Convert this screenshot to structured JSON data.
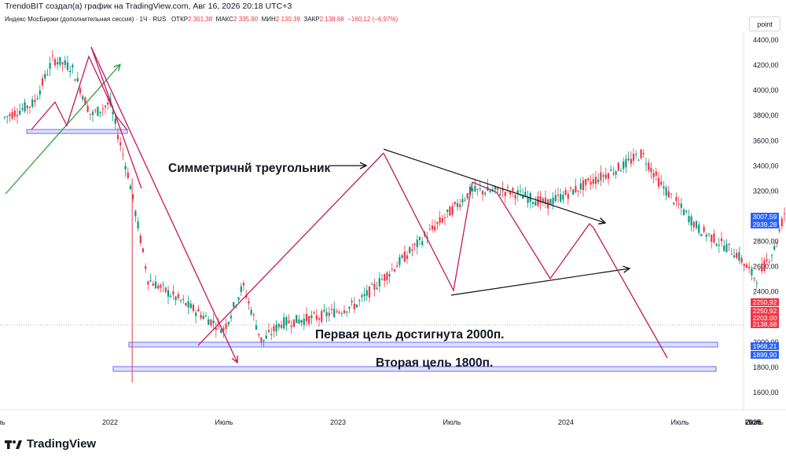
{
  "header": {
    "attribution": "TrendoBIT создал(а) график на TradingView.com, Авг 16, 2026 20:18 UTC+3"
  },
  "symbol_line": {
    "name": "Индекс МосБиржи (дополнительная сессия) · 1Ч · RUS",
    "open_label": "ОТКР",
    "open_value": "2 301,38",
    "high_label": "МАКС",
    "high_value": "2 335,90",
    "low_label": "МИН",
    "low_value": "2 130,39",
    "close_label": "ЗАКР",
    "close_value": "2 138,68",
    "change": "−160,12 (−6,97%)"
  },
  "toolbar": {
    "scale_button": "point"
  },
  "footer": {
    "brand": "TradingView"
  },
  "annotations": {
    "triangle": "Симметричнй треугольник",
    "target1": "Первая цель достигнута 2000п.",
    "target2": "Вторая цель 1800п."
  },
  "price_tags": [
    {
      "text": "3007,59",
      "color": "#2962ff"
    },
    {
      "text": "2939,28",
      "color": "#2962ff"
    },
    {
      "text": "2250,92",
      "color": "#f23645"
    },
    {
      "text": "2250,92",
      "color": "#f23645"
    },
    {
      "text": "2203,00",
      "color": "#f23645"
    },
    {
      "text": "2138,68",
      "color": "#f23645"
    },
    {
      "text": "1968,21",
      "color": "#2962ff"
    },
    {
      "text": "1899,90",
      "color": "#2962ff"
    }
  ],
  "colors": {
    "up": "#089981",
    "down": "#f23645",
    "pattern": "#c2185b",
    "trend_up": "#2e9e3a",
    "zone_fill": "#dde0fb",
    "zone_border": "#6a6ff0"
  },
  "chart_data": {
    "type": "candlestick",
    "title": "Индекс МосБиржи (дополнительная сессия) · 1Ч · RUS",
    "ylim": [
      1500,
      4550
    ],
    "y_ticks": [
      "4400,00",
      "4200,00",
      "4000,00",
      "3800,00",
      "3600,00",
      "3400,00",
      "3200,00",
      "3000,00",
      "2800,00",
      "2600,00",
      "2400,00",
      "2200,00",
      "2000,00",
      "1800,00",
      "1600,00"
    ],
    "y_tick_values": [
      4400,
      4200,
      4000,
      3800,
      3600,
      3400,
      3200,
      3000,
      2800,
      2600,
      2400,
      2200,
      2000,
      1800,
      1600
    ],
    "x_ticks": [
      "Июль",
      "2022",
      "Июль",
      "2023",
      "Июль",
      "2024",
      "Июль",
      "2025",
      "Июль",
      "2026",
      "Июль",
      "2027",
      "Июл"
    ],
    "x_tick_dates": [
      "2021-07",
      "2022-01",
      "2022-07",
      "2023-01",
      "2023-07",
      "2024-01",
      "2024-07",
      "2025-01",
      "2025-07",
      "2026-01",
      "2026-07",
      "2027-01",
      "2027-07"
    ],
    "price_path": [
      [
        "2021-03",
        3450
      ],
      [
        "2021-05",
        3620
      ],
      [
        "2021-07",
        3750
      ],
      [
        "2021-09",
        3900
      ],
      [
        "2021-10",
        4250
      ],
      [
        "2021-11",
        4180
      ],
      [
        "2021-12",
        3800
      ],
      [
        "2022-01",
        3900
      ],
      [
        "2022-02",
        3300
      ],
      [
        "2022-03",
        2500
      ],
      [
        "2022-04",
        2400
      ],
      [
        "2022-05",
        2300
      ],
      [
        "2022-06",
        2200
      ],
      [
        "2022-07",
        2100
      ],
      [
        "2022-08",
        2450
      ],
      [
        "2022-09",
        2000
      ],
      [
        "2022-10",
        2150
      ],
      [
        "2022-12",
        2200
      ],
      [
        "2023-02",
        2300
      ],
      [
        "2023-04",
        2600
      ],
      [
        "2023-06",
        2900
      ],
      [
        "2023-08",
        3200
      ],
      [
        "2023-10",
        3200
      ],
      [
        "2023-12",
        3100
      ],
      [
        "2024-02",
        3250
      ],
      [
        "2024-04",
        3400
      ],
      [
        "2024-05",
        3500
      ],
      [
        "2024-06",
        3250
      ],
      [
        "2024-08",
        2900
      ],
      [
        "2024-10",
        2700
      ],
      [
        "2024-11",
        2500
      ],
      [
        "2024-12",
        2750
      ],
      [
        "2025-01",
        3300
      ],
      [
        "2025-02",
        3250
      ],
      [
        "2025-03",
        2900
      ],
      [
        "2025-05",
        2700
      ],
      [
        "2025-06",
        2700
      ],
      [
        "2025-07",
        2950
      ],
      [
        "2025-09",
        2650
      ],
      [
        "2025-10",
        2650
      ],
      [
        "2025-12",
        2800
      ],
      [
        "2026-02",
        2900
      ],
      [
        "2026-03",
        2850
      ],
      [
        "2026-04",
        2750
      ],
      [
        "2026-05",
        2600
      ],
      [
        "2026-06",
        2200
      ],
      [
        "2026-07",
        2000
      ],
      [
        "2026-08",
        2250
      ],
      [
        "2026-08",
        2138.68
      ]
    ],
    "zones": [
      {
        "low": 3678,
        "high": 3710,
        "from": "2021-04",
        "to": "2022-02"
      },
      {
        "low": 1985,
        "high": 2020,
        "from": "2022-03",
        "to": "2027-05",
        "label": "Первая цель достигнута 2000п."
      },
      {
        "low": 1785,
        "high": 1815,
        "from": "2022-02",
        "to": "2027-05",
        "label": "Вторая цель 1800п."
      }
    ],
    "current_price": 2138.68
  }
}
